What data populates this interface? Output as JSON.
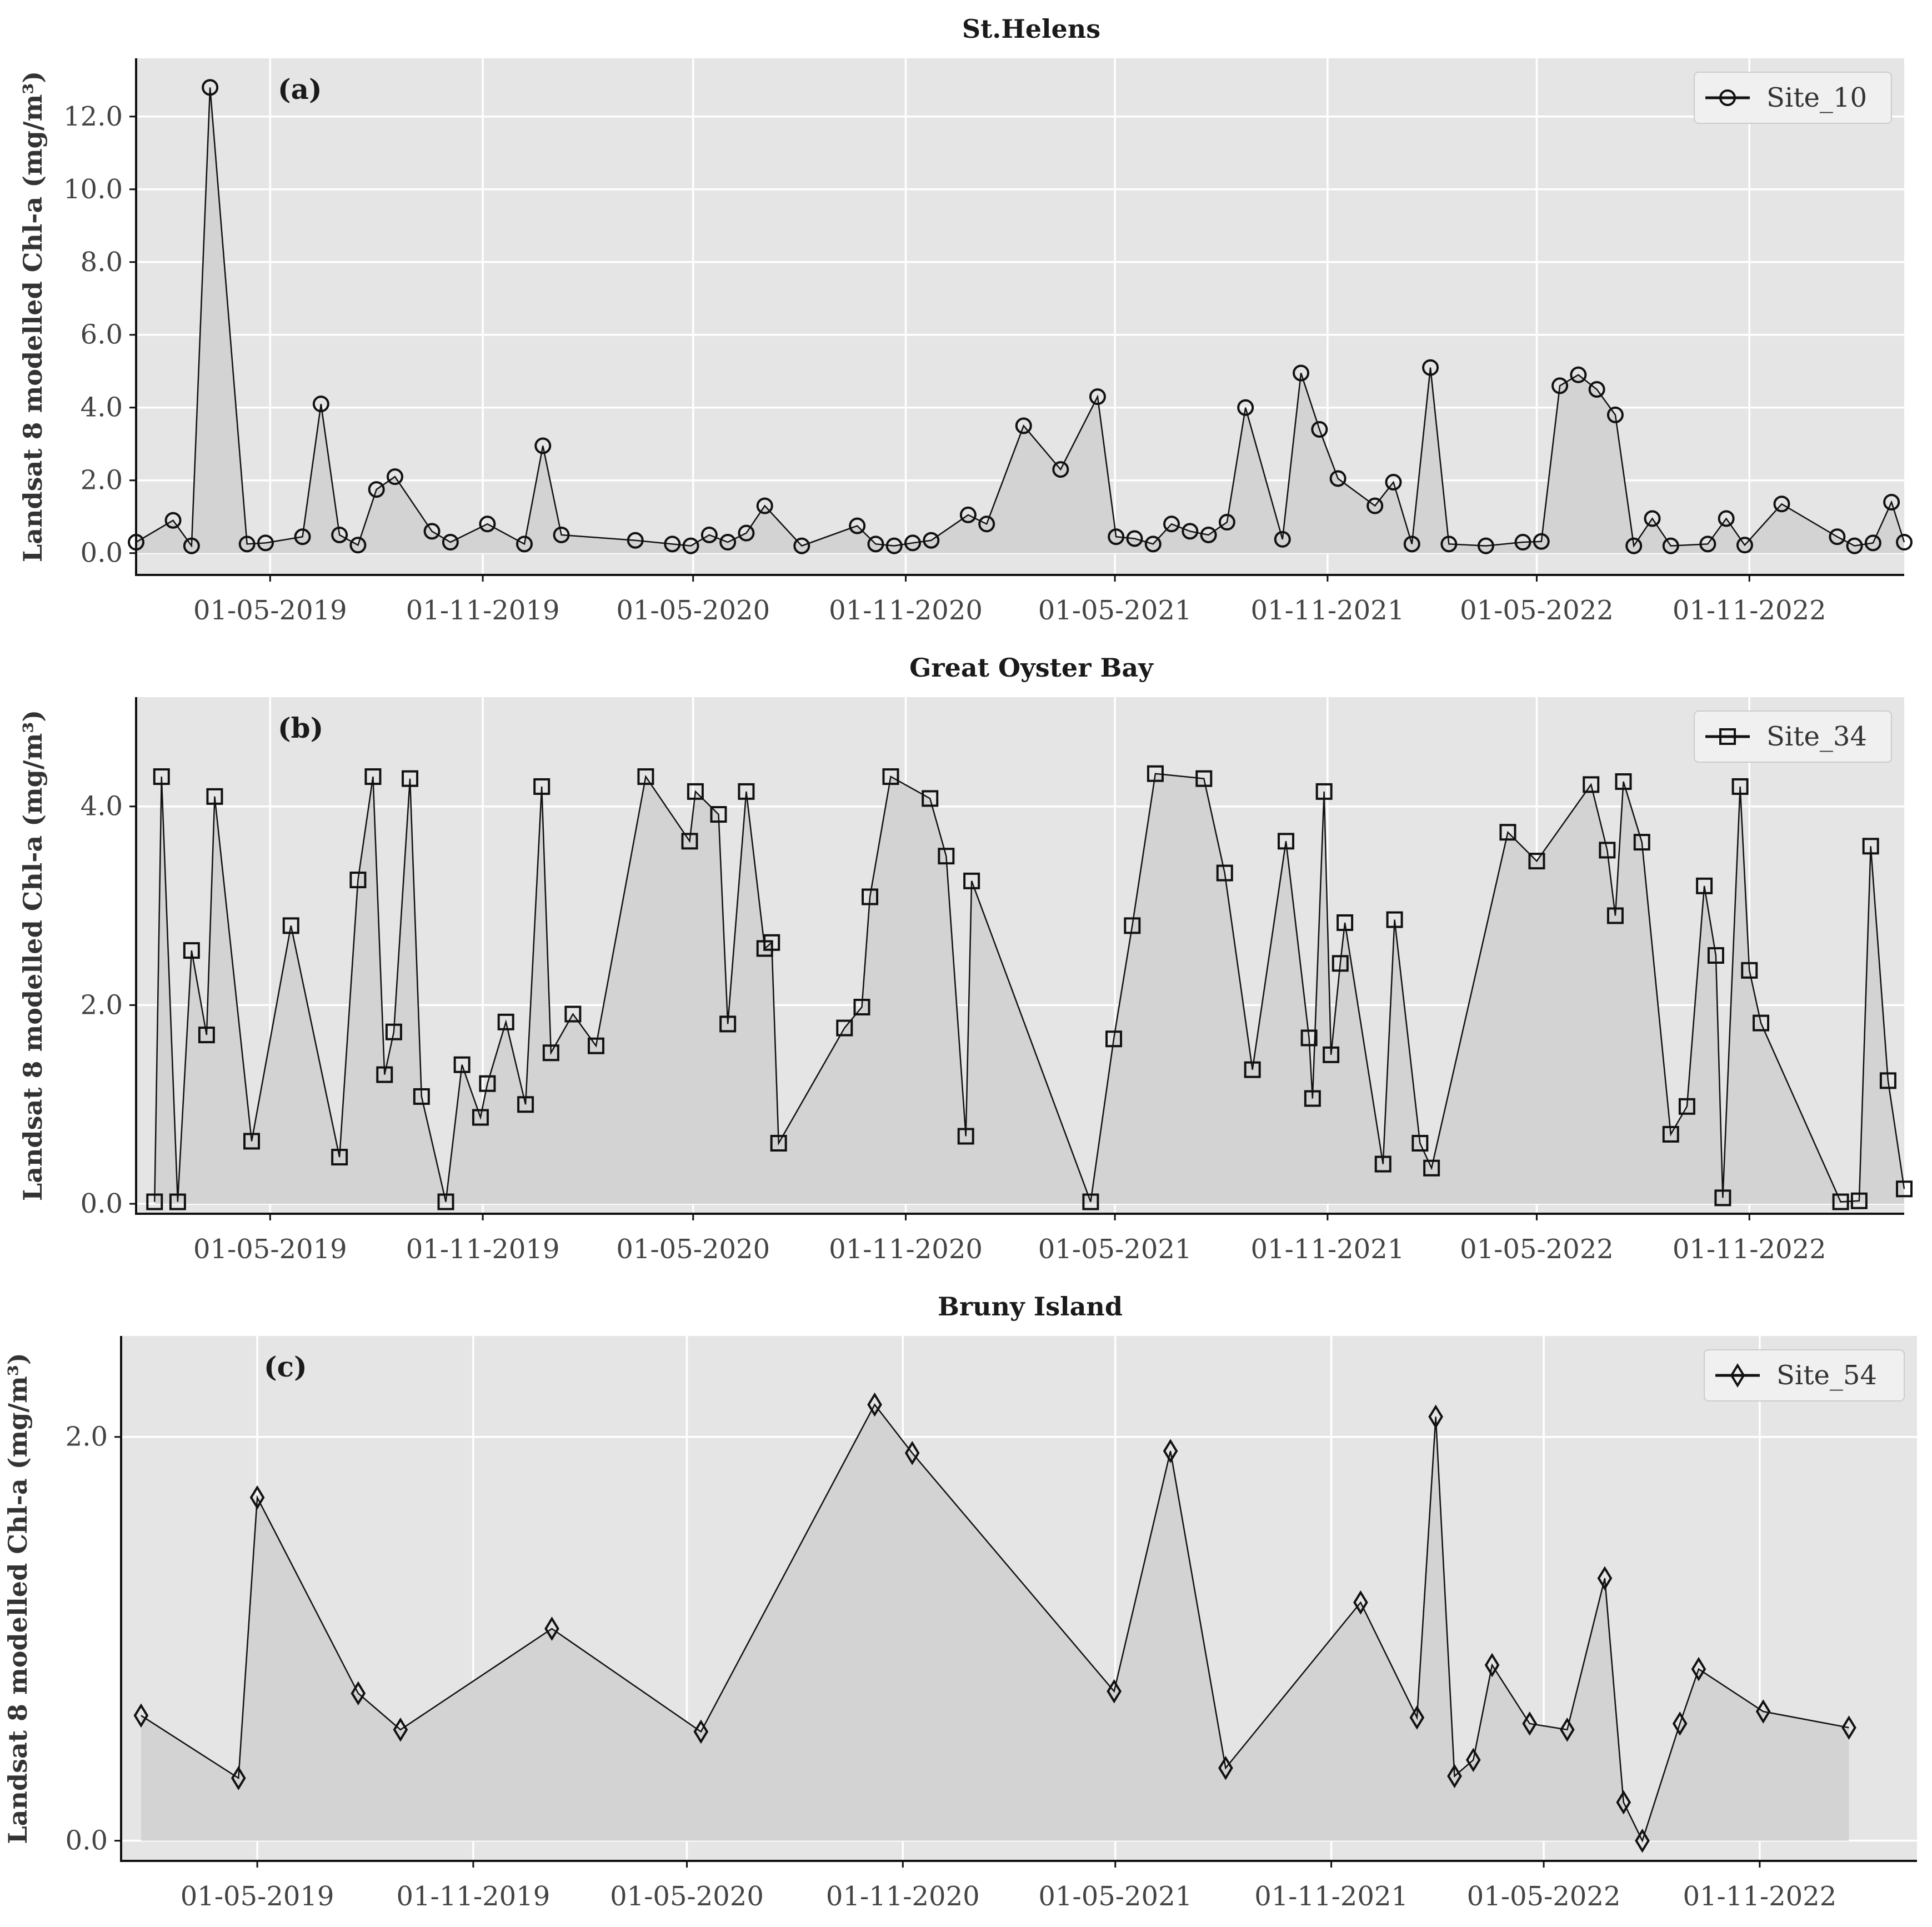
{
  "chart_data": [
    {
      "type": "line",
      "title": "St.Helens",
      "panel_label": "(a)",
      "ylabel": "Landsat 8 modelled Chl-a (mg/m³)",
      "xlabel": "",
      "marker": "circle",
      "legend": "top-right",
      "grid": true,
      "xlim": [
        "2019-01-05",
        "2023-03-15"
      ],
      "ylim": [
        -0.6,
        13.6
      ],
      "xticks": [
        "2019-05-01",
        "2019-11-01",
        "2020-05-01",
        "2020-11-01",
        "2021-05-01",
        "2021-11-01",
        "2022-05-01",
        "2022-11-01"
      ],
      "xtick_labels": [
        "01-05-2019",
        "01-11-2019",
        "01-05-2020",
        "01-11-2020",
        "01-05-2021",
        "01-11-2021",
        "01-05-2022",
        "01-11-2022"
      ],
      "yticks": [
        0,
        2,
        4,
        6,
        8,
        10,
        12
      ],
      "ytick_labels": [
        "0.0",
        "2.0",
        "4.0",
        "6.0",
        "8.0",
        "10.0",
        "12.0"
      ],
      "series": [
        {
          "name": "Site_10",
          "x": [
            "2019-01-05",
            "2019-02-06",
            "2019-02-22",
            "2019-03-10",
            "2019-04-11",
            "2019-04-27",
            "2019-05-29",
            "2019-06-14",
            "2019-06-30",
            "2019-07-16",
            "2019-08-01",
            "2019-08-17",
            "2019-09-18",
            "2019-10-04",
            "2019-11-05",
            "2019-12-07",
            "2019-12-23",
            "2020-01-08",
            "2020-03-12",
            "2020-04-13",
            "2020-04-29",
            "2020-05-15",
            "2020-05-31",
            "2020-06-16",
            "2020-07-02",
            "2020-08-03",
            "2020-09-20",
            "2020-10-06",
            "2020-10-22",
            "2020-11-07",
            "2020-11-23",
            "2020-12-25",
            "2021-01-10",
            "2021-02-11",
            "2021-03-15",
            "2021-04-16",
            "2021-05-02",
            "2021-05-18",
            "2021-06-03",
            "2021-06-19",
            "2021-07-05",
            "2021-07-21",
            "2021-08-06",
            "2021-08-22",
            "2021-09-23",
            "2021-10-09",
            "2021-10-25",
            "2021-11-10",
            "2021-12-12",
            "2021-12-28",
            "2022-01-13",
            "2022-01-29",
            "2022-02-14",
            "2022-03-18",
            "2022-04-19",
            "2022-05-05",
            "2022-05-21",
            "2022-06-06",
            "2022-06-22",
            "2022-07-08",
            "2022-07-24",
            "2022-08-09",
            "2022-08-25",
            "2022-09-26",
            "2022-10-12",
            "2022-10-28",
            "2022-11-29",
            "2023-01-16",
            "2023-01-31",
            "2023-02-16",
            "2023-03-04",
            "2023-03-15"
          ],
          "values": [
            0.3,
            0.9,
            0.2,
            12.8,
            0.25,
            0.28,
            0.45,
            4.1,
            0.5,
            0.22,
            1.75,
            2.1,
            0.6,
            0.3,
            0.8,
            0.25,
            2.95,
            0.5,
            0.35,
            0.25,
            0.2,
            0.5,
            0.3,
            0.55,
            1.3,
            0.2,
            0.75,
            0.25,
            0.2,
            0.28,
            0.35,
            1.05,
            0.8,
            3.5,
            2.3,
            4.3,
            0.45,
            0.4,
            0.25,
            0.8,
            0.6,
            0.5,
            0.85,
            4.0,
            0.38,
            4.95,
            3.4,
            2.05,
            1.3,
            1.95,
            0.25,
            5.1,
            0.25,
            0.2,
            0.3,
            0.32,
            4.6,
            4.9,
            4.5,
            3.8,
            0.2,
            0.95,
            0.2,
            0.25,
            0.95,
            0.22,
            1.35,
            0.45,
            0.2,
            0.28,
            1.4,
            0.3
          ]
        }
      ]
    },
    {
      "type": "line",
      "title": "Great Oyster Bay",
      "panel_label": "(b)",
      "ylabel": "Landsat 8 modelled Chl-a (mg/m³)",
      "xlabel": "",
      "marker": "square",
      "legend": "top-right",
      "grid": true,
      "xlim": [
        "2019-01-05",
        "2023-03-15"
      ],
      "ylim": [
        -0.1,
        5.1
      ],
      "xticks": [
        "2019-05-01",
        "2019-11-01",
        "2020-05-01",
        "2020-11-01",
        "2021-05-01",
        "2021-11-01",
        "2022-05-01",
        "2022-11-01"
      ],
      "xtick_labels": [
        "01-05-2019",
        "01-11-2019",
        "01-05-2020",
        "01-11-2020",
        "01-05-2021",
        "01-11-2021",
        "01-05-2022",
        "01-11-2022"
      ],
      "yticks": [
        0,
        2,
        4
      ],
      "ytick_labels": [
        "0.0",
        "2.0",
        "4.0"
      ],
      "series": [
        {
          "name": "Site_34",
          "x": [
            "2019-01-21",
            "2019-01-27",
            "2019-02-10",
            "2019-02-22",
            "2019-03-07",
            "2019-03-14",
            "2019-04-15",
            "2019-05-19",
            "2019-06-30",
            "2019-07-16",
            "2019-07-29",
            "2019-08-08",
            "2019-08-16",
            "2019-08-30",
            "2019-09-09",
            "2019-09-30",
            "2019-10-14",
            "2019-10-30",
            "2019-11-05",
            "2019-11-21",
            "2019-12-08",
            "2019-12-22",
            "2019-12-30",
            "2020-01-18",
            "2020-02-07",
            "2020-03-21",
            "2020-04-28",
            "2020-05-03",
            "2020-05-23",
            "2020-05-31",
            "2020-06-16",
            "2020-07-02",
            "2020-07-08",
            "2020-07-14",
            "2020-09-09",
            "2020-09-24",
            "2020-10-01",
            "2020-10-19",
            "2020-11-22",
            "2020-12-06",
            "2020-12-23",
            "2020-12-28",
            "2021-04-10",
            "2021-04-30",
            "2021-05-16",
            "2021-06-05",
            "2021-07-17",
            "2021-08-04",
            "2021-08-28",
            "2021-09-26",
            "2021-10-16",
            "2021-10-19",
            "2021-10-29",
            "2021-11-04",
            "2021-11-12",
            "2021-11-16",
            "2021-12-19",
            "2021-12-29",
            "2022-01-20",
            "2022-01-30",
            "2022-04-06",
            "2022-05-01",
            "2022-06-17",
            "2022-07-01",
            "2022-07-08",
            "2022-07-15",
            "2022-07-31",
            "2022-08-25",
            "2022-09-08",
            "2022-09-23",
            "2022-10-03",
            "2022-10-09",
            "2022-10-24",
            "2022-11-01",
            "2022-11-11",
            "2023-01-19",
            "2023-02-04",
            "2023-02-14",
            "2023-03-01",
            "2023-03-15"
          ],
          "values": [
            0.02,
            4.3,
            0.02,
            2.55,
            1.7,
            4.1,
            0.63,
            2.8,
            0.47,
            3.26,
            4.3,
            1.3,
            1.73,
            4.28,
            1.08,
            0.02,
            1.4,
            0.87,
            1.21,
            1.83,
            1.0,
            4.2,
            1.52,
            1.91,
            1.59,
            4.3,
            3.65,
            4.15,
            3.92,
            1.81,
            4.15,
            2.57,
            2.63,
            0.61,
            1.77,
            1.98,
            3.09,
            4.3,
            4.08,
            3.5,
            0.68,
            3.25,
            0.02,
            1.66,
            2.8,
            4.33,
            4.28,
            3.33,
            1.35,
            3.65,
            1.67,
            1.06,
            4.15,
            1.5,
            2.42,
            2.83,
            0.4,
            2.86,
            0.61,
            0.36,
            3.74,
            3.45,
            4.22,
            3.56,
            2.9,
            4.25,
            3.64,
            0.7,
            0.98,
            3.2,
            2.5,
            0.06,
            4.2,
            2.35,
            1.82,
            0.02,
            0.03,
            3.6,
            1.24,
            0.15
          ]
        }
      ]
    },
    {
      "type": "line",
      "title": "Bruny Island",
      "panel_label": "(c)",
      "ylabel": "Landsat 8 modelled Chl-a (mg/m³)",
      "xlabel": "",
      "marker": "diamond",
      "legend": "top-right",
      "grid": true,
      "xlim": [
        "2019-01-05",
        "2023-03-15"
      ],
      "ylim": [
        -0.1,
        2.5
      ],
      "xticks": [
        "2019-05-01",
        "2019-11-01",
        "2020-05-01",
        "2020-11-01",
        "2021-05-01",
        "2021-11-01",
        "2022-05-01",
        "2022-11-01"
      ],
      "xtick_labels": [
        "01-05-2019",
        "01-11-2019",
        "01-05-2020",
        "01-11-2020",
        "01-05-2021",
        "01-11-2021",
        "01-05-2022",
        "01-11-2022"
      ],
      "yticks": [
        0,
        2
      ],
      "ytick_labels": [
        "0.0",
        "2.0"
      ],
      "series": [
        {
          "name": "Site_54",
          "x": [
            "2019-01-22",
            "2019-04-15",
            "2019-05-01",
            "2019-07-26",
            "2019-08-31",
            "2020-01-07",
            "2020-05-13",
            "2020-10-08",
            "2020-11-09",
            "2021-04-30",
            "2021-06-17",
            "2021-08-03",
            "2021-11-26",
            "2022-01-13",
            "2022-01-29",
            "2022-02-14",
            "2022-03-02",
            "2022-03-18",
            "2022-04-19",
            "2022-05-21",
            "2022-06-22",
            "2022-07-08",
            "2022-07-24",
            "2022-08-25",
            "2022-09-10",
            "2022-11-04",
            "2023-01-16"
          ],
          "values": [
            0.62,
            0.31,
            1.7,
            0.73,
            0.55,
            1.05,
            0.54,
            2.16,
            1.92,
            0.74,
            1.93,
            0.36,
            1.18,
            0.61,
            2.1,
            0.32,
            0.4,
            0.87,
            0.58,
            0.55,
            1.3,
            0.19,
            0.0,
            0.58,
            0.85,
            0.64,
            0.56
          ]
        }
      ]
    }
  ]
}
